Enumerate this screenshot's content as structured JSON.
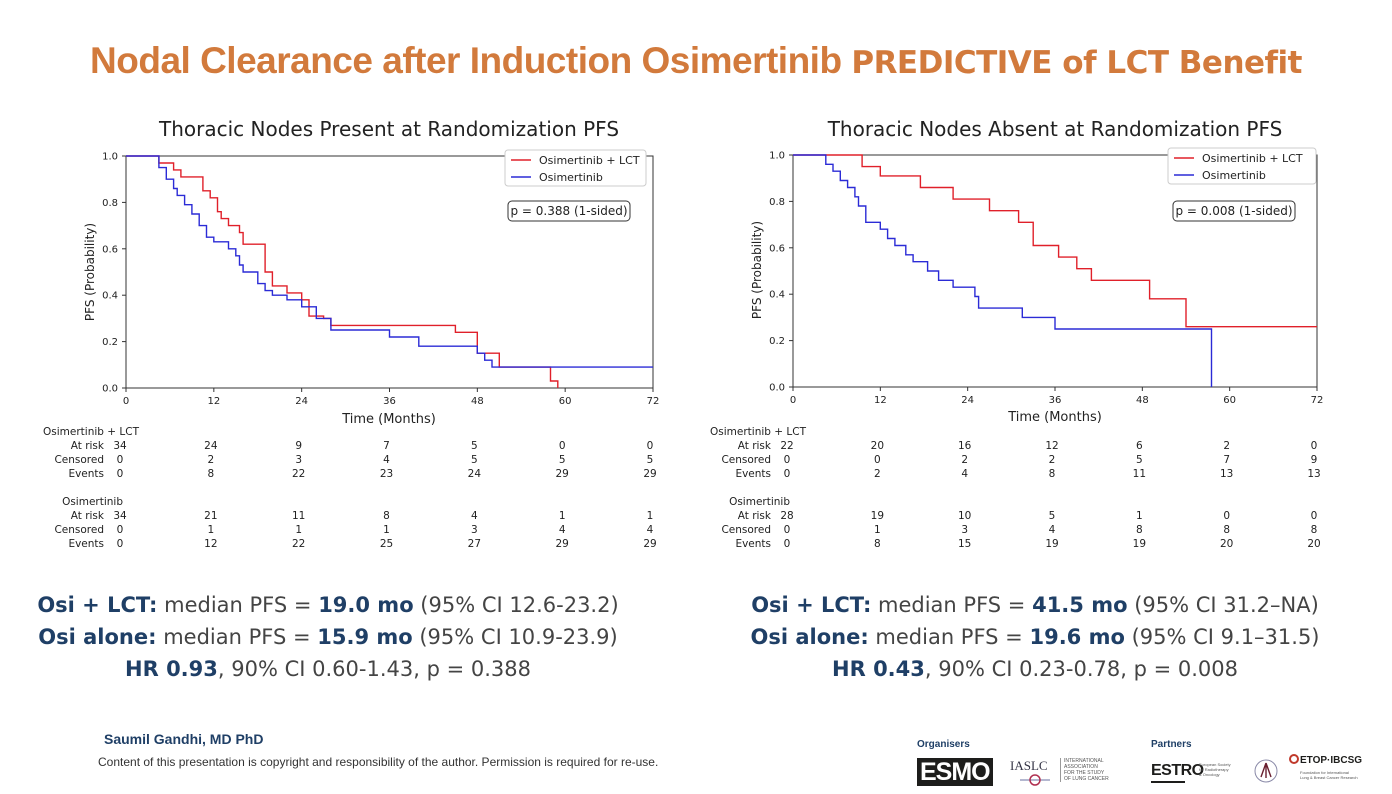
{
  "slide": {
    "title_part1": "Nodal Clearance after Induction Osimertinib",
    "title_part2": "PREDICTIVE of LCT Benefit",
    "author": "Saumil Gandhi, MD PhD",
    "copyright": "Content of this presentation is copyright and responsibility of the author. Permission is required for re-use.",
    "organisers_label": "Organisers",
    "partners_label": "Partners",
    "logos": {
      "esmo": "ESMO",
      "iaslc": "IASLC",
      "iaslc_desc": [
        "INTERNATIONAL",
        "ASSOCIATION",
        "FOR THE STUDY",
        "OF LUNG CANCER"
      ],
      "estro": "ESTRO",
      "estro_desc": [
        "European Society",
        "for Radiotherapy",
        "& Oncology"
      ],
      "etop": "ETOP·IBCSG",
      "etop_desc": [
        "Foundation for International",
        "Lung & Breast Cancer Research"
      ]
    },
    "colors": {
      "title": "#d27a3c",
      "accent": "#1f3f66",
      "lct": "#e0202a",
      "osi": "#2b2bd6"
    }
  },
  "chart_data": [
    {
      "type": "line",
      "subtype": "kaplan-meier",
      "title": "Thoracic Nodes Present at Randomization PFS",
      "xlabel": "Time (Months)",
      "ylabel": "PFS (Probability)",
      "xlim": [
        0,
        72
      ],
      "ylim": [
        0,
        1
      ],
      "xticks": [
        0,
        12,
        24,
        36,
        48,
        60,
        72
      ],
      "yticks": [
        0.0,
        0.2,
        0.4,
        0.6,
        0.8,
        1.0
      ],
      "xtick_labels": [
        "0",
        "12",
        "24",
        "36",
        "48",
        "60",
        "72"
      ],
      "ytick_labels": [
        "0.0",
        "0.2",
        "0.4",
        "0.6",
        "0.8",
        "1.0"
      ],
      "legend_position": "top-right",
      "pvalue": "p = 0.388 (1-sided)",
      "series": [
        {
          "name": "Osimertinib + LCT",
          "color": "#e0202a",
          "x": [
            0,
            4.5,
            6.5,
            7.5,
            10.5,
            11.5,
            12.5,
            13,
            14,
            15.5,
            16,
            19,
            20,
            22,
            24,
            25,
            27,
            28,
            45,
            48,
            51,
            58,
            59
          ],
          "y": [
            1.0,
            0.97,
            0.94,
            0.91,
            0.85,
            0.82,
            0.76,
            0.73,
            0.7,
            0.67,
            0.62,
            0.5,
            0.44,
            0.41,
            0.38,
            0.31,
            0.3,
            0.27,
            0.24,
            0.15,
            0.09,
            0.03,
            0.0
          ]
        },
        {
          "name": "Osimertinib",
          "color": "#2b2bd6",
          "x": [
            0,
            4.5,
            5.5,
            6.5,
            7,
            8,
            9,
            10,
            11,
            12,
            14,
            15,
            15.5,
            16,
            18,
            19,
            20,
            22,
            24,
            26,
            28,
            36,
            40,
            48,
            49,
            50,
            52,
            72
          ],
          "y": [
            1.0,
            0.95,
            0.9,
            0.86,
            0.83,
            0.79,
            0.75,
            0.7,
            0.65,
            0.63,
            0.6,
            0.57,
            0.53,
            0.5,
            0.45,
            0.42,
            0.4,
            0.38,
            0.35,
            0.3,
            0.25,
            0.22,
            0.18,
            0.15,
            0.12,
            0.09,
            0.09,
            0.09
          ]
        }
      ],
      "risk_table": {
        "groups": [
          {
            "name": "Osimertinib + LCT",
            "rows": [
              {
                "label": "At risk",
                "values": [
                  "34",
                  "24",
                  "9",
                  "7",
                  "5",
                  "0",
                  "0"
                ]
              },
              {
                "label": "Censored",
                "values": [
                  "0",
                  "2",
                  "3",
                  "4",
                  "5",
                  "5",
                  "5"
                ]
              },
              {
                "label": "Events",
                "values": [
                  "0",
                  "8",
                  "22",
                  "23",
                  "24",
                  "29",
                  "29"
                ]
              }
            ]
          },
          {
            "name": "Osimertinib",
            "rows": [
              {
                "label": "At risk",
                "values": [
                  "34",
                  "21",
                  "11",
                  "8",
                  "4",
                  "1",
                  "1"
                ]
              },
              {
                "label": "Censored",
                "values": [
                  "0",
                  "1",
                  "1",
                  "1",
                  "3",
                  "4",
                  "4"
                ]
              },
              {
                "label": "Events",
                "values": [
                  "0",
                  "12",
                  "22",
                  "25",
                  "27",
                  "29",
                  "29"
                ]
              }
            ]
          }
        ]
      }
    },
    {
      "type": "line",
      "subtype": "kaplan-meier",
      "title": "Thoracic Nodes Absent at Randomization PFS",
      "xlabel": "Time (Months)",
      "ylabel": "PFS (Probability)",
      "xlim": [
        0,
        72
      ],
      "ylim": [
        0,
        1
      ],
      "xticks": [
        0,
        12,
        24,
        36,
        48,
        60,
        72
      ],
      "yticks": [
        0.0,
        0.2,
        0.4,
        0.6,
        0.8,
        1.0
      ],
      "xtick_labels": [
        "0",
        "12",
        "24",
        "36",
        "48",
        "60",
        "72"
      ],
      "ytick_labels": [
        "0.0",
        "0.2",
        "0.4",
        "0.6",
        "0.8",
        "1.0"
      ],
      "legend_position": "top-right",
      "pvalue": "p = 0.008 (1-sided)",
      "series": [
        {
          "name": "Osimertinib + LCT",
          "color": "#e0202a",
          "x": [
            0,
            9.5,
            12,
            17.5,
            22,
            27,
            31,
            33,
            36.5,
            39,
            41,
            49,
            54,
            72
          ],
          "y": [
            1.0,
            0.95,
            0.91,
            0.86,
            0.81,
            0.76,
            0.71,
            0.61,
            0.56,
            0.51,
            0.46,
            0.38,
            0.26,
            0.26
          ]
        },
        {
          "name": "Osimertinib",
          "color": "#2b2bd6",
          "x": [
            0,
            4.5,
            5.5,
            6.5,
            7.5,
            8.5,
            9,
            10,
            12,
            13,
            14,
            15.5,
            16.5,
            18.5,
            20,
            22,
            25,
            25.5,
            31.5,
            36,
            57.5
          ],
          "y": [
            1.0,
            0.96,
            0.93,
            0.89,
            0.86,
            0.82,
            0.78,
            0.71,
            0.68,
            0.64,
            0.61,
            0.57,
            0.54,
            0.5,
            0.46,
            0.43,
            0.39,
            0.34,
            0.3,
            0.25,
            0.0
          ]
        }
      ],
      "risk_table": {
        "groups": [
          {
            "name": "Osimertinib + LCT",
            "rows": [
              {
                "label": "At risk",
                "values": [
                  "22",
                  "20",
                  "16",
                  "12",
                  "6",
                  "2",
                  "0"
                ]
              },
              {
                "label": "Censored",
                "values": [
                  "0",
                  "0",
                  "2",
                  "2",
                  "5",
                  "7",
                  "9"
                ]
              },
              {
                "label": "Events",
                "values": [
                  "0",
                  "2",
                  "4",
                  "8",
                  "11",
                  "13",
                  "13"
                ]
              }
            ]
          },
          {
            "name": "Osimertinib",
            "rows": [
              {
                "label": "At risk",
                "values": [
                  "28",
                  "19",
                  "10",
                  "5",
                  "1",
                  "0",
                  "0"
                ]
              },
              {
                "label": "Censored",
                "values": [
                  "0",
                  "1",
                  "3",
                  "4",
                  "8",
                  "8",
                  "8"
                ]
              },
              {
                "label": "Events",
                "values": [
                  "0",
                  "8",
                  "15",
                  "19",
                  "19",
                  "20",
                  "20"
                ]
              }
            ]
          }
        ]
      }
    }
  ],
  "summaries": [
    {
      "line1": {
        "label": "Osi + LCT:",
        "text1": " median PFS = ",
        "value": "19.0 mo",
        "text2": " (95% CI 12.6-23.2)"
      },
      "line2": {
        "label": "Osi alone:",
        "text1": " median PFS = ",
        "value": "15.9 mo",
        "text2": " (95% CI 10.9-23.9)"
      },
      "line3": {
        "label": "HR 0.93",
        "text2": ", 90% CI 0.60-1.43, p = 0.388"
      }
    },
    {
      "line1": {
        "label": "Osi + LCT:",
        "text1": " median PFS = ",
        "value": "41.5 mo",
        "text2": " (95% CI 31.2–NA)"
      },
      "line2": {
        "label": "Osi alone:",
        "text1": " median PFS = ",
        "value": "19.6 mo",
        "text2": " (95% CI 9.1–31.5)"
      },
      "line3": {
        "label": "HR 0.43",
        "text2": ", 90% CI 0.23-0.78, p = 0.008"
      }
    }
  ]
}
